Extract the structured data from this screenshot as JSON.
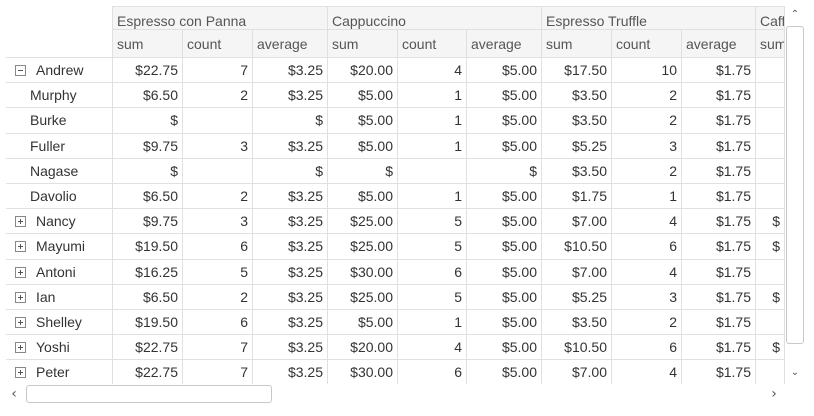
{
  "columns": [
    {
      "product": "Espresso con Panna",
      "measures": [
        "sum",
        "count",
        "average"
      ]
    },
    {
      "product": "Cappuccino",
      "measures": [
        "sum",
        "count",
        "average"
      ]
    },
    {
      "product": "Espresso Truffle",
      "measures": [
        "sum",
        "count",
        "average"
      ]
    },
    {
      "product": "Caffe",
      "measures": [
        "sum"
      ]
    }
  ],
  "rows": [
    {
      "label": "Andrew",
      "kind": "parent",
      "expanded": true,
      "values": [
        "$22.75",
        "7",
        "$3.25",
        "$20.00",
        "4",
        "$5.00",
        "$17.50",
        "10",
        "$1.75",
        ""
      ]
    },
    {
      "label": "Murphy",
      "kind": "child",
      "values": [
        "$6.50",
        "2",
        "$3.25",
        "$5.00",
        "1",
        "$5.00",
        "$3.50",
        "2",
        "$1.75",
        ""
      ]
    },
    {
      "label": "Burke",
      "kind": "child",
      "values": [
        "$",
        "",
        "$",
        "$5.00",
        "1",
        "$5.00",
        "$3.50",
        "2",
        "$1.75",
        ""
      ]
    },
    {
      "label": "Fuller",
      "kind": "child",
      "values": [
        "$9.75",
        "3",
        "$3.25",
        "$5.00",
        "1",
        "$5.00",
        "$5.25",
        "3",
        "$1.75",
        ""
      ]
    },
    {
      "label": "Nagase",
      "kind": "child",
      "values": [
        "$",
        "",
        "$",
        "$",
        "",
        "$",
        "$3.50",
        "2",
        "$1.75",
        ""
      ]
    },
    {
      "label": "Davolio",
      "kind": "child",
      "values": [
        "$6.50",
        "2",
        "$3.25",
        "$5.00",
        "1",
        "$5.00",
        "$1.75",
        "1",
        "$1.75",
        ""
      ]
    },
    {
      "label": "Nancy",
      "kind": "parent",
      "expanded": false,
      "values": [
        "$9.75",
        "3",
        "$3.25",
        "$25.00",
        "5",
        "$5.00",
        "$7.00",
        "4",
        "$1.75",
        "$"
      ]
    },
    {
      "label": "Mayumi",
      "kind": "parent",
      "expanded": false,
      "values": [
        "$19.50",
        "6",
        "$3.25",
        "$25.00",
        "5",
        "$5.00",
        "$10.50",
        "6",
        "$1.75",
        "$"
      ]
    },
    {
      "label": "Antoni",
      "kind": "parent",
      "expanded": false,
      "values": [
        "$16.25",
        "5",
        "$3.25",
        "$30.00",
        "6",
        "$5.00",
        "$7.00",
        "4",
        "$1.75",
        ""
      ]
    },
    {
      "label": "Ian",
      "kind": "parent",
      "expanded": false,
      "values": [
        "$6.50",
        "2",
        "$3.25",
        "$25.00",
        "5",
        "$5.00",
        "$5.25",
        "3",
        "$1.75",
        "$"
      ]
    },
    {
      "label": "Shelley",
      "kind": "parent",
      "expanded": false,
      "values": [
        "$19.50",
        "6",
        "$3.25",
        "$5.00",
        "1",
        "$5.00",
        "$3.50",
        "2",
        "$1.75",
        ""
      ]
    },
    {
      "label": "Yoshi",
      "kind": "parent",
      "expanded": false,
      "values": [
        "$22.75",
        "7",
        "$3.25",
        "$20.00",
        "4",
        "$5.00",
        "$10.50",
        "6",
        "$1.75",
        "$"
      ]
    },
    {
      "label": "Peter",
      "kind": "parent",
      "expanded": false,
      "values": [
        "$22.75",
        "7",
        "$3.25",
        "$30.00",
        "6",
        "$5.00",
        "$7.00",
        "4",
        "$1.75",
        ""
      ]
    }
  ],
  "scrollbars": {
    "up_arrow": "⌃",
    "down_arrow": "⌄",
    "left_arrow": "‹",
    "right_arrow": "›"
  }
}
